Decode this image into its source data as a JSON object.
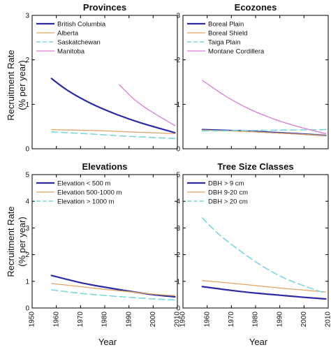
{
  "figure": {
    "ylabel_line1": "Recruitment Rate",
    "ylabel_line2": "(% per year)",
    "xlabel": "Year"
  },
  "chart_data": [
    {
      "type": "line",
      "title": "Provinces",
      "xlim": [
        1950,
        2010
      ],
      "ylim": [
        0,
        3
      ],
      "yticks": [
        0,
        1,
        2,
        3
      ],
      "xticks": [
        1950,
        1960,
        1970,
        1980,
        1990,
        2000,
        2010
      ],
      "legend_position": "top-left",
      "series": [
        {
          "name": "British Columbia",
          "color": "#2b2ba6",
          "dash": "solid",
          "width": 2.2,
          "x": [
            1958,
            1965,
            1975,
            1985,
            1995,
            2009
          ],
          "y": [
            1.58,
            1.3,
            1.0,
            0.77,
            0.58,
            0.36
          ]
        },
        {
          "name": "Alberta",
          "color": "#e3a464",
          "dash": "solid",
          "width": 1.3,
          "x": [
            1958,
            1975,
            1990,
            2009
          ],
          "y": [
            0.43,
            0.41,
            0.38,
            0.34
          ]
        },
        {
          "name": "Saskatchewan",
          "color": "#7ad8df",
          "dash": "dashed",
          "width": 1.6,
          "x": [
            1958,
            1975,
            1990,
            2009
          ],
          "y": [
            0.38,
            0.33,
            0.28,
            0.23
          ]
        },
        {
          "name": "Manitoba",
          "color": "#d97ad8",
          "dash": "solid",
          "width": 1.3,
          "x": [
            1986,
            1992,
            1998,
            2004,
            2009
          ],
          "y": [
            1.44,
            1.12,
            0.88,
            0.68,
            0.52
          ]
        }
      ]
    },
    {
      "type": "line",
      "title": "Ecozones",
      "xlim": [
        1950,
        2010
      ],
      "ylim": [
        0,
        3
      ],
      "yticks": [
        0,
        1,
        2,
        3
      ],
      "xticks": [
        1950,
        1960,
        1970,
        1980,
        1990,
        2000,
        2010
      ],
      "legend_position": "top-left",
      "series": [
        {
          "name": "Boreal Plain",
          "color": "#2b2ba6",
          "dash": "solid",
          "width": 2.2,
          "x": [
            1958,
            1975,
            1990,
            2009
          ],
          "y": [
            0.43,
            0.4,
            0.36,
            0.3
          ]
        },
        {
          "name": "Boreal Shield",
          "color": "#e3a464",
          "dash": "solid",
          "width": 1.3,
          "x": [
            1958,
            1975,
            1990,
            2009
          ],
          "y": [
            0.42,
            0.39,
            0.35,
            0.3
          ]
        },
        {
          "name": "Taiga Plain",
          "color": "#7ad8df",
          "dash": "dashed",
          "width": 1.6,
          "x": [
            1958,
            1975,
            1990,
            2009
          ],
          "y": [
            0.4,
            0.41,
            0.42,
            0.43
          ]
        },
        {
          "name": "Montane Cordillera",
          "color": "#d97ad8",
          "dash": "solid",
          "width": 1.3,
          "x": [
            1958,
            1968,
            1978,
            1988,
            1998,
            2009
          ],
          "y": [
            1.54,
            1.17,
            0.88,
            0.66,
            0.49,
            0.34
          ]
        }
      ]
    },
    {
      "type": "line",
      "title": "Elevations",
      "xlim": [
        1950,
        2010
      ],
      "ylim": [
        0,
        5
      ],
      "yticks": [
        0,
        1,
        2,
        3,
        4,
        5
      ],
      "xticks": [
        1950,
        1960,
        1970,
        1980,
        1990,
        2000,
        2010
      ],
      "legend_position": "top-left",
      "series": [
        {
          "name": "Elevation < 500 m",
          "color": "#2b2ba6",
          "dash": "solid",
          "width": 2.2,
          "x": [
            1958,
            1970,
            1980,
            1990,
            2000,
            2009
          ],
          "y": [
            1.22,
            0.95,
            0.78,
            0.63,
            0.5,
            0.42
          ]
        },
        {
          "name": "Elevation 500-1000 m",
          "color": "#e3a464",
          "dash": "solid",
          "width": 1.3,
          "x": [
            1958,
            1970,
            1980,
            1990,
            2000,
            2009
          ],
          "y": [
            0.92,
            0.8,
            0.7,
            0.61,
            0.52,
            0.46
          ]
        },
        {
          "name": "Elevation > 1000 m",
          "color": "#7ad8df",
          "dash": "dashed",
          "width": 1.6,
          "x": [
            1958,
            1970,
            1980,
            1990,
            2000,
            2009
          ],
          "y": [
            0.68,
            0.55,
            0.47,
            0.4,
            0.34,
            0.3
          ]
        }
      ]
    },
    {
      "type": "line",
      "title": "Tree Size Classes",
      "xlim": [
        1950,
        2010
      ],
      "ylim": [
        0,
        5
      ],
      "yticks": [
        0,
        1,
        2,
        3,
        4,
        5
      ],
      "xticks": [
        1950,
        1960,
        1970,
        1980,
        1990,
        2000,
        2010
      ],
      "legend_position": "top-left",
      "series": [
        {
          "name": "DBH > 9 cm",
          "color": "#2b2ba6",
          "dash": "solid",
          "width": 2.2,
          "x": [
            1958,
            1970,
            1980,
            1990,
            2000,
            2009
          ],
          "y": [
            0.8,
            0.66,
            0.56,
            0.48,
            0.4,
            0.34
          ]
        },
        {
          "name": "DBH 9-20 cm",
          "color": "#e3a464",
          "dash": "solid",
          "width": 1.3,
          "x": [
            1958,
            1970,
            1980,
            1990,
            2000,
            2009
          ],
          "y": [
            1.03,
            0.93,
            0.84,
            0.75,
            0.67,
            0.6
          ]
        },
        {
          "name": "DBH > 20 cm",
          "color": "#7ad8df",
          "dash": "dashed",
          "width": 1.6,
          "x": [
            1958,
            1965,
            1975,
            1985,
            1995,
            2009
          ],
          "y": [
            3.38,
            2.75,
            2.05,
            1.45,
            1.0,
            0.55
          ]
        }
      ]
    }
  ]
}
